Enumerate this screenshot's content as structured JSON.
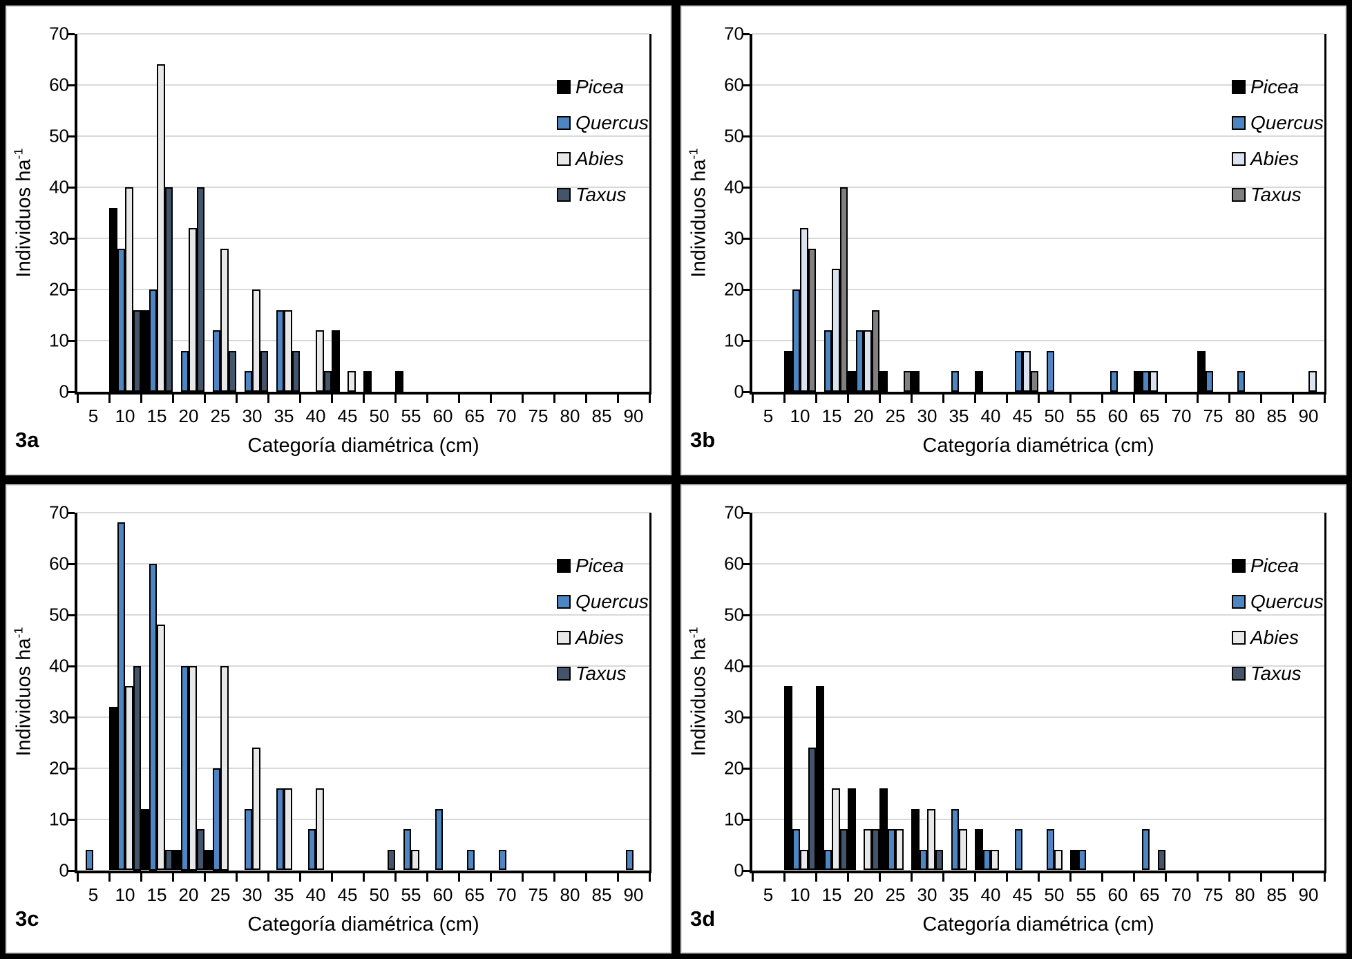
{
  "figure": {
    "x_axis_title": "Categoría diamétrica (cm)",
    "y_axis_title_base": "Individuos ha",
    "y_axis_title_exponent": "-1",
    "y_ticks": [
      0,
      10,
      20,
      30,
      40,
      50,
      60,
      70
    ],
    "ylim": [
      0,
      70
    ],
    "grid": "horizontal",
    "legend_position": "top-right-inside"
  },
  "chart_data": [
    {
      "panel": "3a",
      "type": "bar",
      "categories": [
        5,
        10,
        15,
        20,
        25,
        30,
        35,
        40,
        45,
        50,
        55,
        60,
        65,
        70,
        75,
        80,
        85,
        90
      ],
      "xlabel": "Categoría diamétrica (cm)",
      "ylabel": "Individuos ha-1",
      "ylim": [
        0,
        70
      ],
      "series": [
        {
          "name": "Picea",
          "color": "#000000",
          "values": [
            0,
            36,
            16,
            0,
            0,
            0,
            0,
            0,
            12,
            4,
            4,
            0,
            0,
            0,
            0,
            0,
            0,
            0
          ]
        },
        {
          "name": "Quercus",
          "color": "#4d86c2",
          "values": [
            0,
            28,
            20,
            8,
            12,
            4,
            16,
            0,
            0,
            0,
            0,
            0,
            0,
            0,
            0,
            0,
            0,
            0
          ]
        },
        {
          "name": "Abies",
          "color": "#e9e8e8",
          "values": [
            0,
            40,
            64,
            32,
            28,
            20,
            16,
            12,
            4,
            0,
            0,
            0,
            0,
            0,
            0,
            0,
            0,
            0
          ]
        },
        {
          "name": "Taxus",
          "color": "#44546a",
          "values": [
            0,
            16,
            40,
            40,
            8,
            8,
            8,
            4,
            0,
            0,
            0,
            0,
            0,
            0,
            0,
            0,
            0,
            0
          ]
        }
      ]
    },
    {
      "panel": "3b",
      "type": "bar",
      "categories": [
        5,
        10,
        15,
        20,
        25,
        30,
        35,
        40,
        45,
        50,
        55,
        60,
        65,
        70,
        75,
        80,
        85,
        90
      ],
      "xlabel": "Categoría diamétrica (cm)",
      "ylabel": "Individuos ha-1",
      "ylim": [
        0,
        70
      ],
      "series": [
        {
          "name": "Picea",
          "color": "#000000",
          "values": [
            0,
            8,
            0,
            4,
            4,
            4,
            0,
            4,
            0,
            0,
            0,
            0,
            4,
            0,
            8,
            0,
            0,
            0
          ]
        },
        {
          "name": "Quercus",
          "color": "#4d86c2",
          "values": [
            0,
            20,
            12,
            12,
            0,
            0,
            4,
            0,
            8,
            8,
            0,
            4,
            4,
            0,
            4,
            4,
            0,
            0
          ]
        },
        {
          "name": "Abies",
          "color": "#dce3f0",
          "values": [
            0,
            32,
            24,
            12,
            0,
            0,
            0,
            0,
            8,
            0,
            0,
            0,
            4,
            0,
            0,
            0,
            0,
            4
          ]
        },
        {
          "name": "Taxus",
          "color": "#808080",
          "values": [
            0,
            28,
            40,
            16,
            4,
            0,
            0,
            0,
            4,
            0,
            0,
            0,
            0,
            0,
            0,
            0,
            0,
            0
          ]
        }
      ]
    },
    {
      "panel": "3c",
      "type": "bar",
      "categories": [
        5,
        10,
        15,
        20,
        25,
        30,
        35,
        40,
        45,
        50,
        55,
        60,
        65,
        70,
        75,
        80,
        85,
        90
      ],
      "xlabel": "Categoría diamétrica (cm)",
      "ylabel": "Individuos ha-1",
      "ylim": [
        0,
        70
      ],
      "series": [
        {
          "name": "Picea",
          "color": "#000000",
          "values": [
            0,
            32,
            12,
            4,
            4,
            0,
            0,
            0,
            0,
            0,
            0,
            0,
            0,
            0,
            0,
            0,
            0,
            0
          ]
        },
        {
          "name": "Quercus",
          "color": "#4d86c2",
          "values": [
            4,
            68,
            60,
            40,
            20,
            12,
            16,
            8,
            0,
            0,
            8,
            12,
            4,
            4,
            0,
            0,
            0,
            4
          ]
        },
        {
          "name": "Abies",
          "color": "#e9e8e8",
          "values": [
            0,
            36,
            48,
            40,
            40,
            24,
            16,
            16,
            0,
            0,
            4,
            0,
            0,
            0,
            0,
            0,
            0,
            0
          ]
        },
        {
          "name": "Taxus",
          "color": "#44546a",
          "values": [
            0,
            40,
            4,
            8,
            0,
            0,
            0,
            0,
            0,
            4,
            0,
            0,
            0,
            0,
            0,
            0,
            0,
            0
          ]
        }
      ]
    },
    {
      "panel": "3d",
      "type": "bar",
      "categories": [
        5,
        10,
        15,
        20,
        25,
        30,
        35,
        40,
        45,
        50,
        55,
        60,
        65,
        70,
        75,
        80,
        85,
        90
      ],
      "xlabel": "Categoría diamétrica (cm)",
      "ylabel": "Individuos ha-1",
      "ylim": [
        0,
        70
      ],
      "series": [
        {
          "name": "Picea",
          "color": "#000000",
          "values": [
            0,
            36,
            36,
            16,
            16,
            12,
            0,
            8,
            0,
            0,
            4,
            0,
            0,
            0,
            0,
            0,
            0,
            0
          ]
        },
        {
          "name": "Quercus",
          "color": "#4d86c2",
          "values": [
            0,
            8,
            4,
            0,
            8,
            4,
            12,
            4,
            8,
            8,
            4,
            0,
            8,
            0,
            0,
            0,
            0,
            0
          ]
        },
        {
          "name": "Abies",
          "color": "#e9e8e8",
          "values": [
            0,
            4,
            16,
            8,
            8,
            12,
            8,
            4,
            0,
            4,
            0,
            0,
            0,
            0,
            0,
            0,
            0,
            0
          ]
        },
        {
          "name": "Taxus",
          "color": "#44546a",
          "values": [
            0,
            24,
            8,
            8,
            0,
            4,
            0,
            0,
            0,
            0,
            0,
            0,
            4,
            0,
            0,
            0,
            0,
            0
          ]
        }
      ]
    }
  ]
}
